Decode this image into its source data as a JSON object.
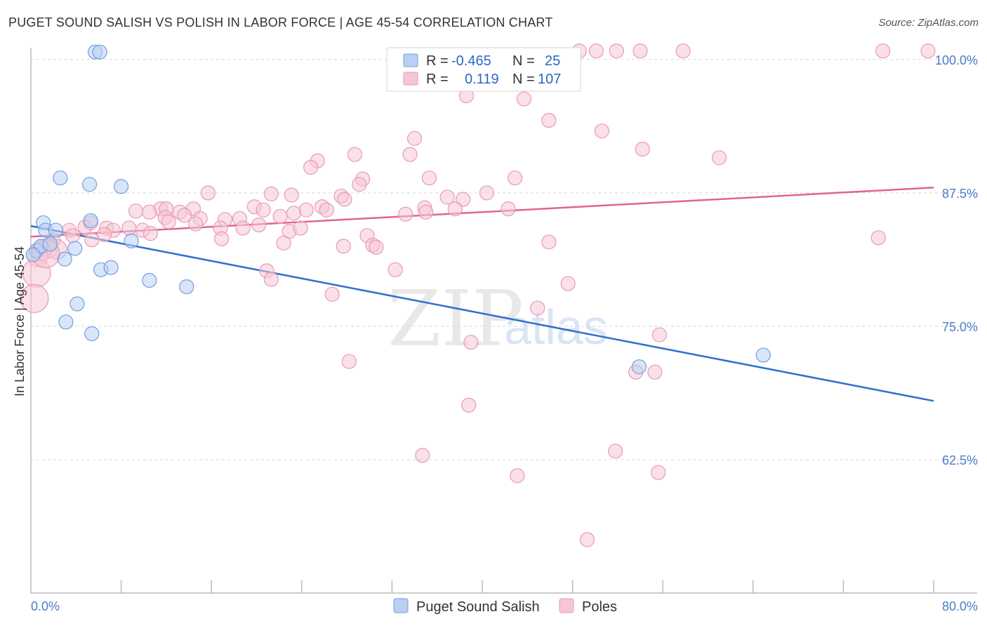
{
  "title": "PUGET SOUND SALISH VS POLISH IN LABOR FORCE | AGE 45-54 CORRELATION CHART",
  "source": "Source: ZipAtlas.com",
  "watermark": {
    "zip": "ZIP",
    "atlas": "atlas"
  },
  "chart_data": {
    "type": "scatter",
    "xlabel": "",
    "ylabel": "In Labor Force | Age 45-54",
    "xlim": [
      0,
      80
    ],
    "ylim": [
      50,
      101.5
    ],
    "x_tick_labels": [
      {
        "value": 0,
        "label": "0.0%"
      },
      {
        "value": 80,
        "label": "80.0%"
      }
    ],
    "x_minor_ticks": [
      8,
      16,
      24,
      32,
      40,
      48,
      56,
      64,
      72,
      80
    ],
    "y_ticks": [
      {
        "value": 100,
        "label": "100.0%"
      },
      {
        "value": 87.5,
        "label": "87.5%"
      },
      {
        "value": 75,
        "label": "75.0%"
      },
      {
        "value": 62.5,
        "label": "62.5%"
      }
    ],
    "grid": "horizontal dashed",
    "legend_placement": "top-center",
    "series": [
      {
        "name": "Puget Sound Salish",
        "color": "#6f9fe0",
        "fill": "#b9d0f3",
        "line_color": "#2e6fd0",
        "R": "-0.465",
        "N": "25",
        "trend": {
          "x0": 0,
          "y0": 84.4,
          "x1": 80,
          "y1": 68.0
        },
        "points": [
          [
            5.7,
            100.7
          ],
          [
            6.1,
            100.7
          ],
          [
            2.6,
            88.9
          ],
          [
            8.0,
            88.1
          ],
          [
            5.2,
            88.3
          ],
          [
            1.1,
            84.7
          ],
          [
            1.3,
            84.0
          ],
          [
            2.2,
            84.0
          ],
          [
            5.3,
            84.9
          ],
          [
            0.5,
            82.1
          ],
          [
            0.9,
            82.5
          ],
          [
            1.7,
            82.7
          ],
          [
            3.9,
            82.3
          ],
          [
            8.9,
            83.0
          ],
          [
            3.0,
            81.3
          ],
          [
            6.2,
            80.3
          ],
          [
            7.1,
            80.5
          ],
          [
            10.5,
            79.3
          ],
          [
            13.8,
            78.7
          ],
          [
            4.1,
            77.1
          ],
          [
            3.1,
            75.4
          ],
          [
            5.4,
            74.3
          ],
          [
            0.2,
            81.7
          ],
          [
            53.9,
            71.2
          ],
          [
            64.9,
            72.3
          ]
        ],
        "sizes": [
          10,
          10,
          10,
          10,
          10,
          10,
          10,
          10,
          10,
          10,
          10,
          10,
          10,
          10,
          10,
          10,
          10,
          10,
          10,
          10,
          10,
          10,
          10,
          10,
          10
        ]
      },
      {
        "name": "Poles",
        "color": "#e89ab2",
        "fill": "#f6c6d5",
        "line_color": "#e0648f",
        "R": "0.119",
        "N": "107",
        "trend": {
          "x0": 0,
          "y0": 83.4,
          "x1": 80,
          "y1": 88.0
        },
        "points": [
          [
            48.6,
            100.8
          ],
          [
            50.1,
            100.8
          ],
          [
            51.9,
            100.8
          ],
          [
            54.0,
            100.8
          ],
          [
            57.8,
            100.8
          ],
          [
            75.5,
            100.8
          ],
          [
            79.5,
            100.8
          ],
          [
            37.0,
            99.0
          ],
          [
            41.7,
            99.0
          ],
          [
            36.3,
            97.7
          ],
          [
            38.6,
            96.6
          ],
          [
            43.7,
            96.3
          ],
          [
            45.9,
            94.3
          ],
          [
            50.6,
            93.3
          ],
          [
            34.0,
            92.6
          ],
          [
            54.2,
            91.6
          ],
          [
            28.7,
            91.1
          ],
          [
            33.6,
            91.1
          ],
          [
            61.0,
            90.8
          ],
          [
            25.4,
            90.5
          ],
          [
            24.8,
            89.9
          ],
          [
            29.4,
            88.8
          ],
          [
            35.3,
            88.9
          ],
          [
            42.9,
            88.9
          ],
          [
            29.1,
            88.3
          ],
          [
            15.7,
            87.5
          ],
          [
            21.3,
            87.4
          ],
          [
            23.1,
            87.3
          ],
          [
            27.5,
            87.2
          ],
          [
            36.9,
            87.1
          ],
          [
            38.3,
            86.9
          ],
          [
            40.4,
            87.5
          ],
          [
            27.8,
            86.9
          ],
          [
            19.8,
            86.2
          ],
          [
            25.8,
            86.2
          ],
          [
            11.5,
            86.0
          ],
          [
            12.0,
            86.0
          ],
          [
            14.4,
            86.0
          ],
          [
            9.3,
            85.8
          ],
          [
            10.5,
            85.7
          ],
          [
            13.2,
            85.7
          ],
          [
            20.6,
            85.9
          ],
          [
            24.4,
            85.9
          ],
          [
            26.2,
            85.9
          ],
          [
            34.9,
            86.1
          ],
          [
            37.6,
            86.0
          ],
          [
            42.3,
            86.0
          ],
          [
            33.2,
            85.5
          ],
          [
            35.0,
            85.7
          ],
          [
            11.9,
            85.2
          ],
          [
            13.6,
            85.4
          ],
          [
            15.0,
            85.1
          ],
          [
            17.2,
            85.0
          ],
          [
            18.5,
            85.1
          ],
          [
            22.1,
            85.3
          ],
          [
            23.3,
            85.6
          ],
          [
            3.4,
            84.0
          ],
          [
            4.8,
            84.3
          ],
          [
            5.3,
            84.7
          ],
          [
            6.7,
            84.2
          ],
          [
            7.3,
            84.0
          ],
          [
            8.7,
            84.2
          ],
          [
            9.9,
            84.0
          ],
          [
            14.6,
            84.6
          ],
          [
            16.8,
            84.2
          ],
          [
            18.8,
            84.2
          ],
          [
            20.2,
            84.5
          ],
          [
            3.7,
            83.5
          ],
          [
            6.5,
            83.6
          ],
          [
            10.6,
            83.7
          ],
          [
            22.9,
            83.9
          ],
          [
            23.9,
            84.2
          ],
          [
            29.8,
            83.5
          ],
          [
            12.2,
            84.8
          ],
          [
            2.0,
            83.1
          ],
          [
            5.4,
            83.1
          ],
          [
            16.9,
            83.2
          ],
          [
            22.4,
            82.8
          ],
          [
            27.7,
            82.5
          ],
          [
            30.3,
            82.6
          ],
          [
            30.6,
            82.4
          ],
          [
            45.9,
            82.9
          ],
          [
            75.1,
            83.3
          ],
          [
            1.5,
            82.3
          ],
          [
            2.3,
            82.2
          ],
          [
            0.9,
            82.0
          ],
          [
            0.6,
            81.5
          ],
          [
            20.9,
            80.2
          ],
          [
            21.3,
            79.4
          ],
          [
            32.3,
            80.3
          ],
          [
            47.6,
            79.0
          ],
          [
            26.7,
            78.0
          ],
          [
            44.9,
            76.7
          ],
          [
            55.7,
            74.2
          ],
          [
            39.0,
            73.5
          ],
          [
            28.2,
            71.7
          ],
          [
            53.6,
            70.7
          ],
          [
            55.3,
            70.7
          ],
          [
            38.8,
            67.6
          ],
          [
            34.7,
            62.9
          ],
          [
            43.1,
            61.0
          ],
          [
            51.8,
            63.3
          ],
          [
            55.6,
            61.3
          ],
          [
            49.3,
            55.0
          ],
          [
            0.5,
            80.0
          ],
          [
            0.3,
            77.6
          ],
          [
            1.3,
            81.8
          ]
        ],
        "sizes": [
          10,
          10,
          10,
          10,
          10,
          10,
          10,
          10,
          10,
          10,
          10,
          10,
          10,
          10,
          10,
          10,
          10,
          10,
          10,
          10,
          10,
          10,
          10,
          10,
          10,
          10,
          10,
          10,
          10,
          10,
          10,
          10,
          10,
          10,
          10,
          10,
          10,
          10,
          10,
          10,
          10,
          10,
          10,
          10,
          10,
          10,
          10,
          10,
          10,
          10,
          10,
          10,
          10,
          10,
          10,
          10,
          10,
          10,
          10,
          10,
          10,
          10,
          10,
          10,
          10,
          10,
          10,
          10,
          10,
          10,
          10,
          10,
          10,
          10,
          10,
          10,
          10,
          10,
          10,
          10,
          10,
          10,
          10,
          14,
          14,
          14,
          14,
          10,
          10,
          10,
          10,
          10,
          10,
          10,
          10,
          10,
          10,
          10,
          10,
          10,
          10,
          10,
          10,
          10,
          20,
          20,
          20
        ]
      }
    ]
  }
}
